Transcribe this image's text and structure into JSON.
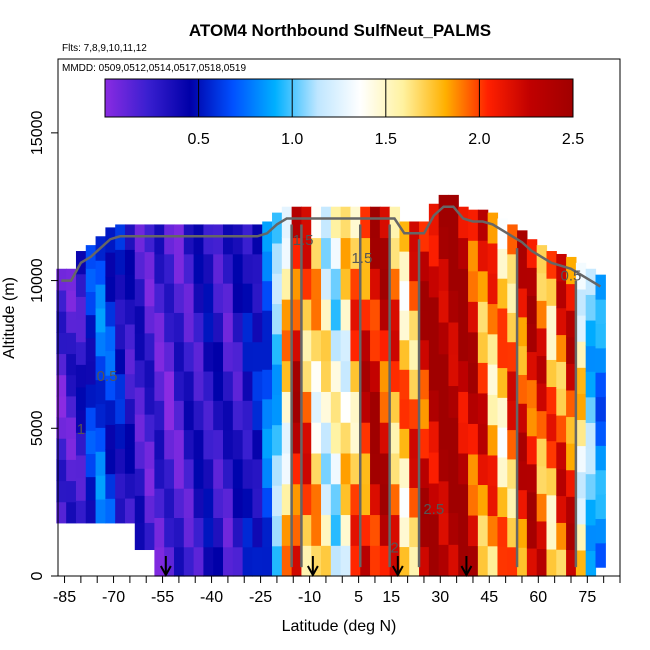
{
  "chart_data": {
    "type": "heatmap",
    "title": "ATOM4 Northbound SulfNeut_PALMS",
    "subtitle_flights": "Flts: 7,8,9,10,11,12",
    "subtitle_dates": "MMDD: 0509,0512,0514,0517,0518,0519",
    "xlabel": "Latitude (deg N)",
    "ylabel": "Altitude (m)",
    "xlim": [
      -87,
      85
    ],
    "ylim": [
      0,
      17500
    ],
    "x_ticks": [
      -85,
      -70,
      -55,
      -40,
      -25,
      -10,
      5,
      15,
      30,
      45,
      60,
      75
    ],
    "x_tick_labels": [
      "-85",
      "-70",
      "-55",
      "-40",
      "-25",
      "-10",
      "5",
      "15",
      "30",
      "45",
      "60",
      "75"
    ],
    "y_ticks": [
      0,
      5000,
      10000,
      15000
    ],
    "y_tick_labels": [
      "0",
      "5000",
      "10000",
      "15000"
    ],
    "colorbar": {
      "range": [
        0,
        2.5
      ],
      "ticks": [
        0.5,
        1.0,
        1.5,
        2.0,
        2.5
      ],
      "tick_labels": [
        "0.5",
        "1.0",
        "1.5",
        "2.0",
        "2.5"
      ],
      "colors": [
        "#8a2be2",
        "#3a1fd0",
        "#0000a8",
        "#0050ff",
        "#00b0ff",
        "#bfe6ff",
        "#ffffff",
        "#fff2a0",
        "#ffb000",
        "#ff2000",
        "#c00000",
        "#a00000"
      ]
    },
    "contour_labels": [
      "0.5",
      "1",
      "1.5",
      "2",
      "2.5"
    ],
    "flight_arrows_lat": [
      -54,
      -9,
      17,
      38
    ],
    "columns": [
      {
        "lat": -86,
        "top": 10400,
        "bottom": 1800,
        "val": 0.15
      },
      {
        "lat": -83,
        "top": 10400,
        "bottom": 1800,
        "val": 0.2
      },
      {
        "lat": -80,
        "top": 11000,
        "bottom": 1800,
        "val": 0.3
      },
      {
        "lat": -77,
        "top": 11200,
        "bottom": 1800,
        "val": 0.55
      },
      {
        "lat": -74,
        "top": 11500,
        "bottom": 1800,
        "val": 0.7
      },
      {
        "lat": -71,
        "top": 11800,
        "bottom": 1800,
        "val": 0.6
      },
      {
        "lat": -68,
        "top": 11900,
        "bottom": 1800,
        "val": 0.45
      },
      {
        "lat": -65,
        "top": 11900,
        "bottom": 1800,
        "val": 0.3
      },
      {
        "lat": -62,
        "top": 11900,
        "bottom": 900,
        "val": 0.25
      },
      {
        "lat": -59,
        "top": 11900,
        "bottom": 900,
        "val": 0.2
      },
      {
        "lat": -56,
        "top": 11900,
        "bottom": 0,
        "val": 0.2
      },
      {
        "lat": -53,
        "top": 11900,
        "bottom": 0,
        "val": 0.15
      },
      {
        "lat": -50,
        "top": 11900,
        "bottom": 0,
        "val": 0.2
      },
      {
        "lat": -47,
        "top": 11900,
        "bottom": 0,
        "val": 0.25
      },
      {
        "lat": -44,
        "top": 11900,
        "bottom": 0,
        "val": 0.3
      },
      {
        "lat": -41,
        "top": 11900,
        "bottom": 0,
        "val": 0.35
      },
      {
        "lat": -38,
        "top": 11900,
        "bottom": 0,
        "val": 0.3
      },
      {
        "lat": -35,
        "top": 11900,
        "bottom": 0,
        "val": 0.25
      },
      {
        "lat": -32,
        "top": 11900,
        "bottom": 0,
        "val": 0.3
      },
      {
        "lat": -29,
        "top": 11900,
        "bottom": 0,
        "val": 0.4
      },
      {
        "lat": -26,
        "top": 11900,
        "bottom": 0,
        "val": 0.45
      },
      {
        "lat": -23,
        "top": 12000,
        "bottom": 0,
        "val": 0.7
      },
      {
        "lat": -20,
        "top": 12300,
        "bottom": 0,
        "val": 1.0
      },
      {
        "lat": -17,
        "top": 12500,
        "bottom": 0,
        "val": 1.6
      },
      {
        "lat": -14,
        "top": 12500,
        "bottom": 0,
        "val": 2.2
      },
      {
        "lat": -11,
        "top": 12500,
        "bottom": 0,
        "val": 1.9
      },
      {
        "lat": -8,
        "top": 12500,
        "bottom": 0,
        "val": 1.6
      },
      {
        "lat": -5,
        "top": 12500,
        "bottom": 0,
        "val": 1.4
      },
      {
        "lat": -2,
        "top": 12500,
        "bottom": 0,
        "val": 1.3
      },
      {
        "lat": 1,
        "top": 12500,
        "bottom": 0,
        "val": 1.5
      },
      {
        "lat": 4,
        "top": 12500,
        "bottom": 0,
        "val": 1.8
      },
      {
        "lat": 7,
        "top": 12500,
        "bottom": 0,
        "val": 2.1
      },
      {
        "lat": 10,
        "top": 12500,
        "bottom": 0,
        "val": 2.3
      },
      {
        "lat": 13,
        "top": 12500,
        "bottom": 0,
        "val": 2.2
      },
      {
        "lat": 16,
        "top": 12500,
        "bottom": 0,
        "val": 1.9
      },
      {
        "lat": 19,
        "top": 12000,
        "bottom": 0,
        "val": 1.7
      },
      {
        "lat": 22,
        "top": 12000,
        "bottom": 0,
        "val": 1.9
      },
      {
        "lat": 25,
        "top": 12000,
        "bottom": 0,
        "val": 2.2
      },
      {
        "lat": 28,
        "top": 12600,
        "bottom": 0,
        "val": 2.4
      },
      {
        "lat": 31,
        "top": 12900,
        "bottom": 0,
        "val": 2.5
      },
      {
        "lat": 34,
        "top": 12900,
        "bottom": 0,
        "val": 2.5
      },
      {
        "lat": 37,
        "top": 12500,
        "bottom": 0,
        "val": 2.4
      },
      {
        "lat": 40,
        "top": 12400,
        "bottom": 0,
        "val": 2.2
      },
      {
        "lat": 43,
        "top": 12400,
        "bottom": 0,
        "val": 2.0
      },
      {
        "lat": 46,
        "top": 12300,
        "bottom": 0,
        "val": 1.8
      },
      {
        "lat": 49,
        "top": 12100,
        "bottom": 0,
        "val": 1.7
      },
      {
        "lat": 52,
        "top": 11900,
        "bottom": 0,
        "val": 1.9
      },
      {
        "lat": 55,
        "top": 11700,
        "bottom": 0,
        "val": 2.1
      },
      {
        "lat": 58,
        "top": 11400,
        "bottom": 0,
        "val": 2.2
      },
      {
        "lat": 61,
        "top": 11200,
        "bottom": 0,
        "val": 2.0
      },
      {
        "lat": 64,
        "top": 11000,
        "bottom": 0,
        "val": 1.8
      },
      {
        "lat": 67,
        "top": 10900,
        "bottom": 0,
        "val": 2.0
      },
      {
        "lat": 70,
        "top": 10800,
        "bottom": 0,
        "val": 2.1
      },
      {
        "lat": 73,
        "top": 10600,
        "bottom": 0,
        "val": 1.5
      },
      {
        "lat": 76,
        "top": 10400,
        "bottom": 0,
        "val": 1.0
      },
      {
        "lat": 79,
        "top": 10200,
        "bottom": 300,
        "val": 0.8
      }
    ]
  }
}
